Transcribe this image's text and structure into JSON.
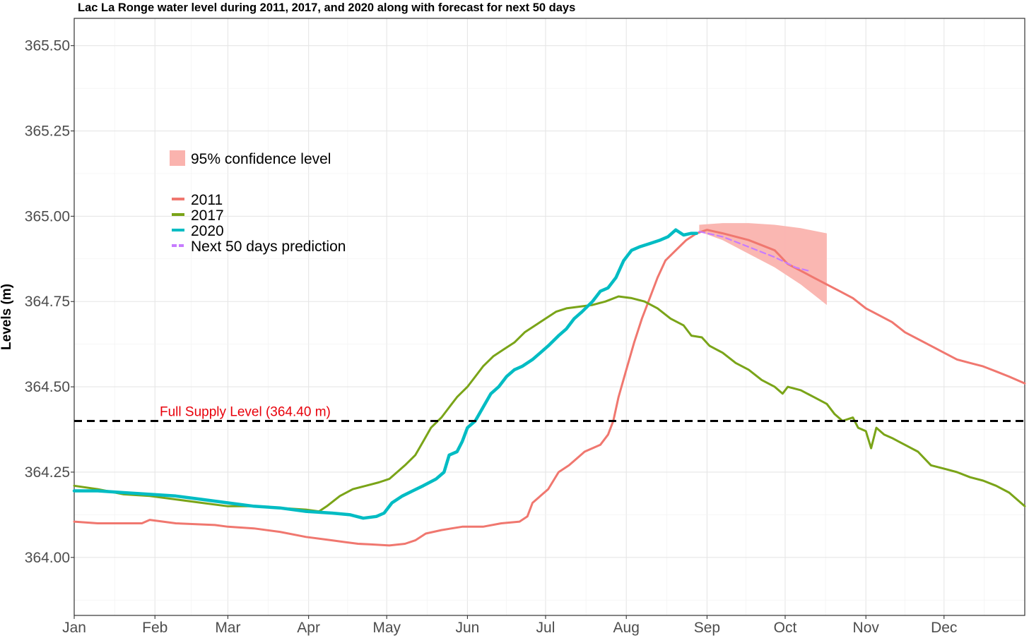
{
  "chart_data": {
    "type": "line",
    "title": "Lac La Ronge water level during 2011, 2017, and 2020 along with forecast for next 50 days",
    "xlabel": "",
    "ylabel": "Levels (m)",
    "x_unit": "day of year",
    "x_ticks": [
      {
        "label": "Jan",
        "day": 1
      },
      {
        "label": "Feb",
        "day": 32
      },
      {
        "label": "Mar",
        "day": 60
      },
      {
        "label": "Apr",
        "day": 91
      },
      {
        "label": "May",
        "day": 121
      },
      {
        "label": "Jun",
        "day": 152
      },
      {
        "label": "Jul",
        "day": 182
      },
      {
        "label": "Aug",
        "day": 213
      },
      {
        "label": "Sep",
        "day": 244
      },
      {
        "label": "Oct",
        "day": 274
      },
      {
        "label": "Nov",
        "day": 305
      },
      {
        "label": "Dec",
        "day": 335
      }
    ],
    "y_ticks": [
      "364.00",
      "364.25",
      "364.50",
      "364.75",
      "365.00",
      "365.25",
      "365.50"
    ],
    "xlim": [
      1,
      366
    ],
    "ylim": [
      363.83,
      365.58
    ],
    "grid": true,
    "reference_line": {
      "label": "Full Supply Level (364.40 m)",
      "value": 364.4,
      "color": "#e8000b",
      "style": "dashed"
    },
    "legend": {
      "placement": "upper-left",
      "band_label": "95% confidence level",
      "band_color": "#fab3ae"
    },
    "series": [
      {
        "name": "2011",
        "color": "#f0776f",
        "points": [
          [
            1,
            364.105
          ],
          [
            10,
            364.1
          ],
          [
            20,
            364.1
          ],
          [
            27,
            364.1
          ],
          [
            30,
            364.11
          ],
          [
            40,
            364.1
          ],
          [
            55,
            364.095
          ],
          [
            60,
            364.09
          ],
          [
            70,
            364.085
          ],
          [
            80,
            364.075
          ],
          [
            90,
            364.06
          ],
          [
            100,
            364.05
          ],
          [
            105,
            364.045
          ],
          [
            110,
            364.04
          ],
          [
            115,
            364.038
          ],
          [
            122,
            364.035
          ],
          [
            128,
            364.04
          ],
          [
            132,
            364.05
          ],
          [
            136,
            364.07
          ],
          [
            142,
            364.08
          ],
          [
            150,
            364.09
          ],
          [
            158,
            364.09
          ],
          [
            165,
            364.1
          ],
          [
            172,
            364.105
          ],
          [
            175,
            364.12
          ],
          [
            177,
            364.16
          ],
          [
            180,
            364.18
          ],
          [
            183,
            364.2
          ],
          [
            187,
            364.25
          ],
          [
            191,
            364.27
          ],
          [
            194,
            364.29
          ],
          [
            197,
            364.31
          ],
          [
            200,
            364.32
          ],
          [
            203,
            364.33
          ],
          [
            206,
            364.36
          ],
          [
            208,
            364.4
          ],
          [
            210,
            364.47
          ],
          [
            213,
            364.55
          ],
          [
            216,
            364.63
          ],
          [
            219,
            364.7
          ],
          [
            222,
            364.76
          ],
          [
            225,
            364.82
          ],
          [
            228,
            364.87
          ],
          [
            232,
            364.9
          ],
          [
            236,
            364.93
          ],
          [
            240,
            364.95
          ],
          [
            244,
            364.96
          ],
          [
            250,
            364.95
          ],
          [
            260,
            364.93
          ],
          [
            270,
            364.9
          ],
          [
            275,
            364.86
          ],
          [
            280,
            364.84
          ],
          [
            285,
            364.82
          ],
          [
            290,
            364.8
          ],
          [
            295,
            364.78
          ],
          [
            300,
            364.76
          ],
          [
            305,
            364.73
          ],
          [
            310,
            364.71
          ],
          [
            315,
            364.69
          ],
          [
            320,
            364.66
          ],
          [
            325,
            364.64
          ],
          [
            330,
            364.62
          ],
          [
            335,
            364.6
          ],
          [
            340,
            364.58
          ],
          [
            345,
            364.57
          ],
          [
            350,
            364.56
          ],
          [
            355,
            364.545
          ],
          [
            360,
            364.53
          ],
          [
            366,
            364.51
          ]
        ]
      },
      {
        "name": "2017",
        "color": "#7aa418",
        "points": [
          [
            1,
            364.21
          ],
          [
            10,
            364.2
          ],
          [
            20,
            364.185
          ],
          [
            30,
            364.18
          ],
          [
            40,
            364.17
          ],
          [
            50,
            364.16
          ],
          [
            60,
            364.15
          ],
          [
            70,
            364.15
          ],
          [
            80,
            364.145
          ],
          [
            90,
            364.14
          ],
          [
            95,
            364.135
          ],
          [
            98,
            364.15
          ],
          [
            103,
            364.18
          ],
          [
            108,
            364.2
          ],
          [
            113,
            364.21
          ],
          [
            118,
            364.22
          ],
          [
            122,
            364.23
          ],
          [
            125,
            364.25
          ],
          [
            128,
            364.27
          ],
          [
            132,
            364.3
          ],
          [
            135,
            364.34
          ],
          [
            138,
            364.38
          ],
          [
            142,
            364.41
          ],
          [
            145,
            364.44
          ],
          [
            148,
            364.47
          ],
          [
            152,
            364.5
          ],
          [
            155,
            364.53
          ],
          [
            158,
            364.56
          ],
          [
            162,
            364.59
          ],
          [
            166,
            364.61
          ],
          [
            170,
            364.63
          ],
          [
            174,
            364.66
          ],
          [
            178,
            364.68
          ],
          [
            182,
            364.7
          ],
          [
            186,
            364.72
          ],
          [
            190,
            364.73
          ],
          [
            195,
            364.735
          ],
          [
            200,
            364.74
          ],
          [
            205,
            364.75
          ],
          [
            210,
            364.765
          ],
          [
            215,
            364.76
          ],
          [
            220,
            364.75
          ],
          [
            225,
            364.73
          ],
          [
            230,
            364.7
          ],
          [
            235,
            364.68
          ],
          [
            238,
            364.65
          ],
          [
            242,
            364.645
          ],
          [
            245,
            364.62
          ],
          [
            250,
            364.6
          ],
          [
            255,
            364.57
          ],
          [
            260,
            364.55
          ],
          [
            265,
            364.52
          ],
          [
            270,
            364.5
          ],
          [
            273,
            364.48
          ],
          [
            275,
            364.5
          ],
          [
            280,
            364.49
          ],
          [
            285,
            364.47
          ],
          [
            290,
            364.45
          ],
          [
            293,
            364.42
          ],
          [
            296,
            364.4
          ],
          [
            300,
            364.41
          ],
          [
            302,
            364.38
          ],
          [
            305,
            364.37
          ],
          [
            307,
            364.32
          ],
          [
            309,
            364.38
          ],
          [
            312,
            364.36
          ],
          [
            315,
            364.35
          ],
          [
            320,
            364.33
          ],
          [
            325,
            364.31
          ],
          [
            330,
            364.27
          ],
          [
            335,
            364.26
          ],
          [
            340,
            364.25
          ],
          [
            345,
            364.235
          ],
          [
            350,
            364.225
          ],
          [
            355,
            364.21
          ],
          [
            360,
            364.19
          ],
          [
            366,
            364.15
          ]
        ]
      },
      {
        "name": "2020",
        "color": "#00bcc3",
        "points": [
          [
            1,
            364.195
          ],
          [
            10,
            364.195
          ],
          [
            20,
            364.19
          ],
          [
            30,
            364.185
          ],
          [
            40,
            364.18
          ],
          [
            50,
            364.17
          ],
          [
            60,
            364.16
          ],
          [
            70,
            364.15
          ],
          [
            80,
            364.145
          ],
          [
            90,
            364.135
          ],
          [
            100,
            364.13
          ],
          [
            107,
            364.125
          ],
          [
            112,
            364.115
          ],
          [
            117,
            364.12
          ],
          [
            120,
            364.13
          ],
          [
            123,
            364.16
          ],
          [
            127,
            364.18
          ],
          [
            131,
            364.195
          ],
          [
            135,
            364.21
          ],
          [
            140,
            364.23
          ],
          [
            143,
            364.25
          ],
          [
            145,
            364.3
          ],
          [
            148,
            364.31
          ],
          [
            150,
            364.34
          ],
          [
            152,
            364.38
          ],
          [
            155,
            364.4
          ],
          [
            158,
            364.44
          ],
          [
            161,
            364.48
          ],
          [
            164,
            364.5
          ],
          [
            167,
            364.53
          ],
          [
            170,
            364.55
          ],
          [
            173,
            364.56
          ],
          [
            177,
            364.58
          ],
          [
            180,
            364.6
          ],
          [
            183,
            364.62
          ],
          [
            187,
            364.65
          ],
          [
            190,
            364.67
          ],
          [
            193,
            364.7
          ],
          [
            196,
            364.72
          ],
          [
            200,
            364.75
          ],
          [
            203,
            364.78
          ],
          [
            206,
            364.79
          ],
          [
            209,
            364.82
          ],
          [
            212,
            364.87
          ],
          [
            215,
            364.9
          ],
          [
            218,
            364.91
          ],
          [
            222,
            364.92
          ],
          [
            226,
            364.93
          ],
          [
            229,
            364.94
          ],
          [
            232,
            364.96
          ],
          [
            235,
            364.945
          ],
          [
            238,
            364.95
          ],
          [
            240,
            364.95
          ]
        ]
      },
      {
        "name": "Next 50 days prediction",
        "color": "#c77cff",
        "style": "dashed",
        "points": [
          [
            241,
            364.955
          ],
          [
            250,
            364.94
          ],
          [
            260,
            364.91
          ],
          [
            270,
            364.88
          ],
          [
            278,
            364.85
          ],
          [
            283,
            364.84
          ]
        ]
      }
    ],
    "confidence_band": {
      "name": "95% confidence level",
      "x": [
        241,
        250,
        260,
        270,
        280,
        290
      ],
      "upper": [
        364.975,
        364.98,
        364.98,
        364.975,
        364.965,
        364.95
      ],
      "lower": [
        364.955,
        364.93,
        364.89,
        364.85,
        364.8,
        364.74
      ]
    }
  }
}
